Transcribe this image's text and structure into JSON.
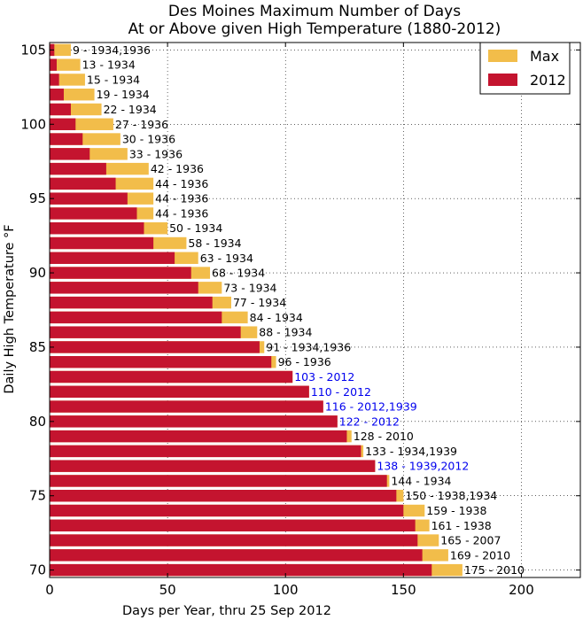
{
  "chart_data": {
    "type": "bar",
    "orientation": "horizontal",
    "title": "Des Moines Maximum Number of Days",
    "subtitle": "At or Above given High Temperature (1880-2012)",
    "xlabel": "Days per Year, thru 25 Sep 2012",
    "ylabel": "Daily High Temperature °F",
    "xlim": [
      0,
      225
    ],
    "ylim": [
      69.5,
      105.5
    ],
    "x_ticks": [
      0,
      50,
      100,
      150,
      200
    ],
    "y_ticks": [
      70,
      75,
      80,
      85,
      90,
      95,
      100,
      105
    ],
    "grid": true,
    "legend_position": "top-right",
    "colors": {
      "max": "#f2bd4a",
      "2012": "#c4142f",
      "label_default": "#000000",
      "label_2012_record": "#0000ee"
    },
    "series": [
      {
        "name": "Max",
        "color": "#f2bd4a"
      },
      {
        "name": "2012",
        "color": "#c4142f"
      }
    ],
    "temperatures": [
      105,
      104,
      103,
      102,
      101,
      100,
      99,
      98,
      97,
      96,
      95,
      94,
      93,
      92,
      91,
      90,
      89,
      88,
      87,
      86,
      85,
      84,
      83,
      82,
      81,
      80,
      79,
      78,
      77,
      76,
      75,
      74,
      73,
      72,
      71,
      70
    ],
    "max_values": [
      9,
      13,
      15,
      19,
      22,
      27,
      30,
      33,
      42,
      44,
      44,
      44,
      50,
      58,
      63,
      68,
      73,
      77,
      84,
      88,
      91,
      96,
      103,
      110,
      116,
      122,
      128,
      133,
      138,
      144,
      150,
      159,
      161,
      165,
      169,
      175
    ],
    "values_2012": [
      2,
      3,
      4,
      6,
      9,
      11,
      14,
      17,
      24,
      28,
      33,
      37,
      40,
      44,
      53,
      60,
      63,
      69,
      73,
      81,
      89,
      94,
      103,
      110,
      116,
      122,
      126,
      132,
      138,
      143,
      147,
      150,
      155,
      156,
      158,
      162
    ],
    "bar_labels": [
      "9 - 1934,1936",
      "13 - 1934",
      "15 - 1934",
      "19 - 1934",
      "22 - 1934",
      "27 - 1936",
      "30 - 1936",
      "33 - 1936",
      "42 - 1936",
      "44 - 1936",
      "44 - 1936",
      "44 - 1936",
      "50 - 1934",
      "58 - 1934",
      "63 - 1934",
      "68 - 1934",
      "73 - 1934",
      "77 - 1934",
      "84 - 1934",
      "88 - 1934",
      "91 - 1934,1936",
      "96 - 1936",
      "103 - 2012",
      "110 - 2012",
      "116 - 2012,1939",
      "122 - 2012",
      "128 - 2010",
      "133 - 1934,1939",
      "138 - 1939,2012",
      "144 - 1934",
      "150 - 1938,1934",
      "159 - 1938",
      "161 - 1938",
      "165 - 2007",
      "169 - 2010",
      "175 - 2010"
    ],
    "record_2012": [
      false,
      false,
      false,
      false,
      false,
      false,
      false,
      false,
      false,
      false,
      false,
      false,
      false,
      false,
      false,
      false,
      false,
      false,
      false,
      false,
      false,
      false,
      true,
      true,
      true,
      true,
      false,
      false,
      true,
      false,
      false,
      false,
      false,
      false,
      false,
      false
    ]
  }
}
